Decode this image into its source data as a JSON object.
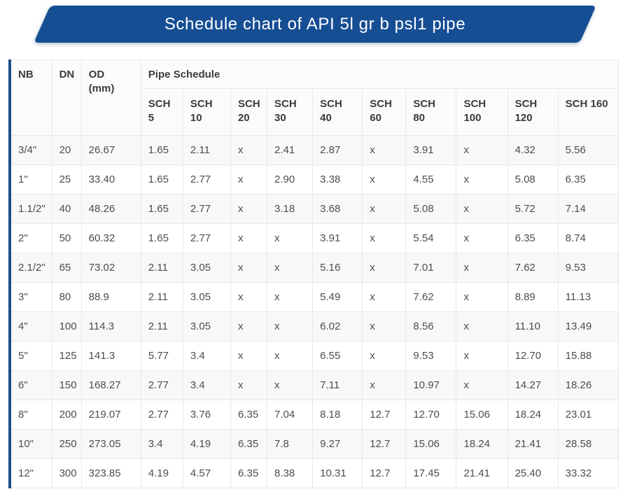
{
  "banner": {
    "title": "Schedule chart of API 5l gr b psl1 pipe",
    "background": "#164e94",
    "text_color": "#ffffff"
  },
  "colors": {
    "table_accent_border": "#1d4f8c",
    "row_stripe": "#f8f8f8",
    "cell_border": "#e8e8e8"
  },
  "chart_data": {
    "type": "table",
    "title": "Schedule chart of API 5l gr b psl1 pipe",
    "header": {
      "nb": "NB",
      "dn": "DN",
      "od_line1": "OD",
      "od_line2": "(mm)",
      "group": "Pipe Schedule",
      "sch_columns": [
        "SCH 5",
        "SCH 10",
        "SCH 20",
        "SCH 30",
        "SCH 40",
        "SCH 60",
        "SCH 80",
        "SCH 100",
        "SCH 120",
        "SCH 160"
      ]
    },
    "rows": [
      [
        "3/4\"",
        "20",
        "26.67",
        "1.65",
        "2.11",
        "x",
        "2.41",
        "2.87",
        "x",
        "3.91",
        "x",
        "4.32",
        "5.56"
      ],
      [
        "1\"",
        "25",
        "33.40",
        "1.65",
        "2.77",
        "x",
        "2.90",
        "3.38",
        "x",
        "4.55",
        "x",
        "5.08",
        "6.35"
      ],
      [
        "1.1/2\"",
        "40",
        "48.26",
        "1.65",
        "2.77",
        "x",
        "3.18",
        "3.68",
        "x",
        "5.08",
        "x",
        "5.72",
        "7.14"
      ],
      [
        "2\"",
        "50",
        "60.32",
        "1.65",
        "2.77",
        "x",
        "x",
        "3.91",
        "x",
        "5.54",
        "x",
        "6.35",
        "8.74"
      ],
      [
        "2.1/2\"",
        "65",
        "73.02",
        "2.11",
        "3.05",
        "x",
        "x",
        "5.16",
        "x",
        "7.01",
        "x",
        "7.62",
        "9.53"
      ],
      [
        "3\"",
        "80",
        "88.9",
        "2.11",
        "3.05",
        "x",
        "x",
        "5.49",
        "x",
        "7.62",
        "x",
        "8.89",
        "11.13"
      ],
      [
        "4\"",
        "100",
        "114.3",
        "2.11",
        "3.05",
        "x",
        "x",
        "6.02",
        "x",
        "8.56",
        "x",
        "11.10",
        "13.49"
      ],
      [
        "5\"",
        "125",
        "141.3",
        "5.77",
        "3.4",
        "x",
        "x",
        "6.55",
        "x",
        "9.53",
        "x",
        "12.70",
        "15.88"
      ],
      [
        "6\"",
        "150",
        "168.27",
        "2.77",
        "3.4",
        "x",
        "x",
        "7.11",
        "x",
        "10.97",
        "x",
        "14.27",
        "18.26"
      ],
      [
        "8\"",
        "200",
        "219.07",
        "2.77",
        "3.76",
        "6.35",
        "7.04",
        "8.18",
        "12.7",
        "12.70",
        "15.06",
        "18.24",
        "23.01"
      ],
      [
        "10\"",
        "250",
        "273.05",
        "3.4",
        "4.19",
        "6.35",
        "7.8",
        "9.27",
        "12.7",
        "15.06",
        "18.24",
        "21.41",
        "28.58"
      ],
      [
        "12\"",
        "300",
        "323.85",
        "4.19",
        "4.57",
        "6.35",
        "8.38",
        "10.31",
        "12.7",
        "17.45",
        "21.41",
        "25.40",
        "33.32"
      ]
    ]
  }
}
